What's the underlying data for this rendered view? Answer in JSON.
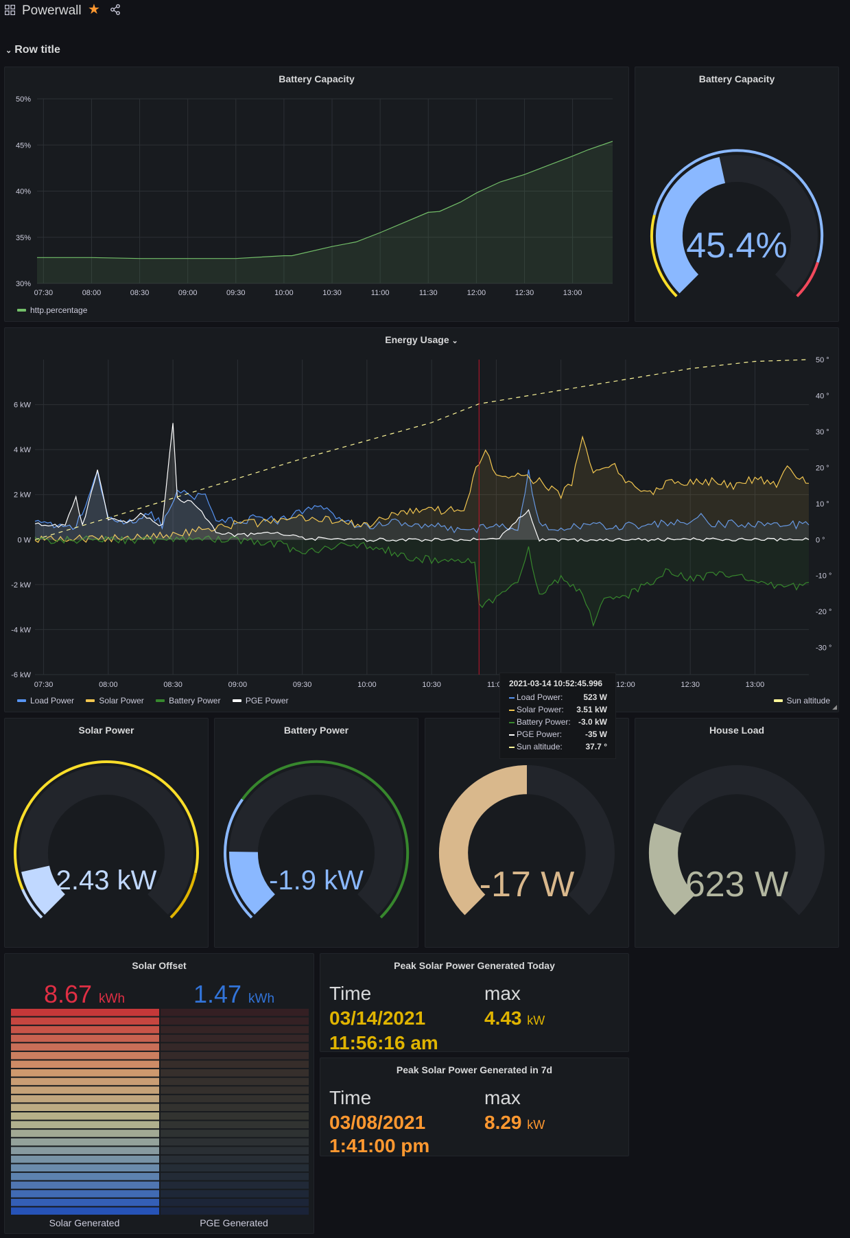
{
  "header": {
    "title": "Powerwall",
    "row_title": "Row title"
  },
  "battery_chart": {
    "title": "Battery Capacity",
    "chart_data": {
      "type": "area",
      "title": "Battery Capacity",
      "x_ticks": [
        "07:30",
        "08:00",
        "08:30",
        "09:00",
        "09:30",
        "10:00",
        "10:30",
        "11:00",
        "11:30",
        "12:00",
        "12:30",
        "13:00"
      ],
      "y_ticks": [
        "30%",
        "35%",
        "40%",
        "45%",
        "50%"
      ],
      "ylim": [
        30,
        50
      ],
      "xlim": [
        "07:26",
        "13:25"
      ],
      "series": [
        {
          "name": "http.percentage",
          "color": "#73bf69",
          "points": [
            [
              "07:26",
              32.8
            ],
            [
              "08:00",
              32.8
            ],
            [
              "08:30",
              32.7
            ],
            [
              "09:00",
              32.7
            ],
            [
              "09:30",
              32.7
            ],
            [
              "10:00",
              33.0
            ],
            [
              "10:05",
              33.0
            ],
            [
              "10:30",
              34.0
            ],
            [
              "10:45",
              34.5
            ],
            [
              "11:00",
              35.5
            ],
            [
              "11:15",
              36.6
            ],
            [
              "11:30",
              37.7
            ],
            [
              "11:37",
              37.8
            ],
            [
              "11:50",
              38.8
            ],
            [
              "12:00",
              39.8
            ],
            [
              "12:15",
              41.0
            ],
            [
              "12:30",
              41.8
            ],
            [
              "12:45",
              42.8
            ],
            [
              "13:00",
              43.8
            ],
            [
              "13:10",
              44.5
            ],
            [
              "13:25",
              45.4
            ]
          ]
        }
      ]
    }
  },
  "battery_gauge": {
    "title": "Battery Capacity",
    "value_text": "45.4%",
    "value": 45.4,
    "min": 0,
    "max": 100,
    "color": "#8ab8ff"
  },
  "energy_chart": {
    "title": "Energy Usage",
    "chart_data": {
      "type": "line",
      "title": "Energy Usage",
      "x_ticks": [
        "07:30",
        "08:00",
        "08:30",
        "09:00",
        "09:30",
        "10:00",
        "10:30",
        "11:00",
        "11:30",
        "12:00",
        "12:30",
        "13:00"
      ],
      "y_ticks_left": [
        "-6 kW",
        "-4 kW",
        "-2 kW",
        "0 W",
        "2 kW",
        "4 kW",
        "6 kW"
      ],
      "y_ticks_right": [
        "-30 °",
        "-20 °",
        "-10 °",
        "0 °",
        "10 °",
        "20 °",
        "30 °",
        "40 °",
        "50 °"
      ],
      "ylim_kw": [
        -6,
        8
      ],
      "ylim_deg": [
        -37.5,
        50
      ],
      "xlim": [
        "07:26",
        "13:25"
      ],
      "series": [
        {
          "name": "Load Power",
          "color": "#5794f2",
          "axis": "left",
          "points": [
            [
              "07:26",
              0.7
            ],
            [
              "07:45",
              0.6
            ],
            [
              "07:55",
              2.9
            ],
            [
              "08:00",
              0.9
            ],
            [
              "08:10",
              0.8
            ],
            [
              "08:20",
              1.2
            ],
            [
              "08:25",
              0.6
            ],
            [
              "08:32",
              2.2
            ],
            [
              "08:40",
              1.8
            ],
            [
              "08:45",
              2.1
            ],
            [
              "08:50",
              0.9
            ],
            [
              "09:00",
              0.8
            ],
            [
              "09:10",
              1.0
            ],
            [
              "09:20",
              0.8
            ],
            [
              "09:30",
              1.3
            ],
            [
              "09:40",
              1.4
            ],
            [
              "09:50",
              0.7
            ],
            [
              "10:00",
              0.6
            ],
            [
              "10:10",
              0.8
            ],
            [
              "10:30",
              0.6
            ],
            [
              "10:45",
              0.4
            ],
            [
              "11:00",
              0.6
            ],
            [
              "11:10",
              0.5
            ],
            [
              "11:15",
              3.0
            ],
            [
              "11:20",
              0.6
            ],
            [
              "11:30",
              0.5
            ],
            [
              "11:45",
              0.6
            ],
            [
              "12:00",
              0.6
            ],
            [
              "12:30",
              0.8
            ],
            [
              "12:35",
              1.3
            ],
            [
              "12:40",
              0.7
            ],
            [
              "13:00",
              0.7
            ],
            [
              "13:25",
              0.65
            ]
          ]
        },
        {
          "name": "Solar Power",
          "color": "#f2c650",
          "axis": "left",
          "points": [
            [
              "07:26",
              0.0
            ],
            [
              "08:00",
              0.05
            ],
            [
              "08:30",
              0.2
            ],
            [
              "08:45",
              0.5
            ],
            [
              "09:00",
              0.7
            ],
            [
              "09:20",
              0.8
            ],
            [
              "09:30",
              1.0
            ],
            [
              "09:50",
              0.8
            ],
            [
              "10:00",
              0.6
            ],
            [
              "10:10",
              1.0
            ],
            [
              "10:20",
              1.2
            ],
            [
              "10:30",
              1.3
            ],
            [
              "10:45",
              1.3
            ],
            [
              "10:52",
              3.5
            ],
            [
              "10:55",
              3.9
            ],
            [
              "11:00",
              3.0
            ],
            [
              "11:10",
              2.8
            ],
            [
              "11:20",
              2.6
            ],
            [
              "11:30",
              2.0
            ],
            [
              "11:35",
              2.5
            ],
            [
              "11:40",
              4.4
            ],
            [
              "11:45",
              3.0
            ],
            [
              "11:55",
              3.3
            ],
            [
              "12:00",
              2.6
            ],
            [
              "12:10",
              2.0
            ],
            [
              "12:20",
              2.6
            ],
            [
              "12:30",
              2.5
            ],
            [
              "12:40",
              2.6
            ],
            [
              "12:50",
              2.4
            ],
            [
              "13:00",
              2.7
            ],
            [
              "13:10",
              2.5
            ],
            [
              "13:15",
              3.2
            ],
            [
              "13:25",
              2.5
            ]
          ]
        },
        {
          "name": "Battery Power",
          "color": "#37872d",
          "axis": "left",
          "points": [
            [
              "07:26",
              0.0
            ],
            [
              "09:00",
              0.0
            ],
            [
              "09:20",
              -0.2
            ],
            [
              "09:30",
              -0.6
            ],
            [
              "09:45",
              -0.3
            ],
            [
              "10:00",
              -0.3
            ],
            [
              "10:10",
              -0.5
            ],
            [
              "10:20",
              -0.8
            ],
            [
              "10:30",
              -0.9
            ],
            [
              "10:50",
              -1.0
            ],
            [
              "10:52",
              -3.0
            ],
            [
              "10:55",
              -2.8
            ],
            [
              "11:00",
              -2.7
            ],
            [
              "11:10",
              -1.9
            ],
            [
              "11:15",
              -0.4
            ],
            [
              "11:20",
              -2.5
            ],
            [
              "11:30",
              -1.7
            ],
            [
              "11:40",
              -2.3
            ],
            [
              "11:45",
              -3.7
            ],
            [
              "11:50",
              -2.6
            ],
            [
              "12:00",
              -2.5
            ],
            [
              "12:10",
              -2.0
            ],
            [
              "12:20",
              -1.3
            ],
            [
              "12:30",
              -1.8
            ],
            [
              "12:45",
              -1.5
            ],
            [
              "13:00",
              -1.7
            ],
            [
              "13:15",
              -2.2
            ],
            [
              "13:25",
              -1.9
            ]
          ]
        },
        {
          "name": "PGE Power",
          "color": "#ffffff",
          "axis": "left",
          "points": [
            [
              "07:26",
              0.7
            ],
            [
              "07:40",
              0.6
            ],
            [
              "07:45",
              1.9
            ],
            [
              "07:48",
              0.6
            ],
            [
              "07:55",
              3.1
            ],
            [
              "08:00",
              0.9
            ],
            [
              "08:10",
              0.8
            ],
            [
              "08:15",
              1.2
            ],
            [
              "08:25",
              0.6
            ],
            [
              "08:30",
              5.2
            ],
            [
              "08:32",
              1.8
            ],
            [
              "08:40",
              1.6
            ],
            [
              "08:45",
              1.0
            ],
            [
              "08:50",
              0.3
            ],
            [
              "09:00",
              0.2
            ],
            [
              "09:20",
              0.3
            ],
            [
              "09:30",
              0.05
            ],
            [
              "10:00",
              0.0
            ],
            [
              "10:30",
              0.0
            ],
            [
              "11:00",
              0.0
            ],
            [
              "11:15",
              1.3
            ],
            [
              "11:20",
              0.0
            ],
            [
              "12:00",
              0.0
            ],
            [
              "12:30",
              0.0
            ],
            [
              "13:00",
              0.0
            ],
            [
              "13:25",
              0.0
            ]
          ]
        },
        {
          "name": "Sun altitude",
          "color": "#fff899",
          "axis": "right",
          "dashed": true,
          "points": [
            [
              "07:26",
              0.0
            ],
            [
              "08:00",
              6.0
            ],
            [
              "08:30",
              11.5
            ],
            [
              "09:00",
              17.0
            ],
            [
              "09:30",
              22.5
            ],
            [
              "10:00",
              27.5
            ],
            [
              "10:30",
              32.5
            ],
            [
              "10:52",
              37.7
            ],
            [
              "11:30",
              41.5
            ],
            [
              "12:00",
              44.5
            ],
            [
              "12:30",
              47.5
            ],
            [
              "13:00",
              49.5
            ],
            [
              "13:25",
              50.0
            ]
          ]
        }
      ],
      "hover_time": "10:52"
    },
    "tooltip": {
      "timestamp": "2021-03-14 10:52:45.996",
      "rows": [
        {
          "label": "Load Power:",
          "value": "523 W",
          "color": "#5794f2"
        },
        {
          "label": "Solar Power:",
          "value": "3.51 kW",
          "color": "#f2c650"
        },
        {
          "label": "Battery Power:",
          "value": "-3.0 kW",
          "color": "#37872d"
        },
        {
          "label": "PGE Power:",
          "value": "-35 W",
          "color": "#ffffff"
        },
        {
          "label": "Sun altitude:",
          "value": "37.7 °",
          "color": "#fff899"
        }
      ]
    }
  },
  "gauges": [
    {
      "title": "Solar Power",
      "value_text": "2.43 kW",
      "fraction": 0.12,
      "color": "#c0d8ff",
      "bg": "#22252b"
    },
    {
      "title": "Battery Power",
      "value_text": "-1.9 kW",
      "fraction": 0.17,
      "color": "#8ab8ff",
      "bg": "#22252b"
    },
    {
      "title": "",
      "value_text": "-17 W",
      "fraction": 0.5,
      "color": "#d9b88c",
      "bg": "#22252b"
    },
    {
      "title": "House Load",
      "value_text": "623 W",
      "fraction": 0.24,
      "color": "#b3b7a0",
      "bg": "#22252b"
    }
  ],
  "solar_offset": {
    "title": "Solar Offset",
    "solar_value": "8.67",
    "solar_unit": "kWh",
    "solar_color": "#e02f44",
    "pge_value": "1.47",
    "pge_unit": "kWh",
    "pge_color": "#3274d9",
    "solar_label": "Solar Generated",
    "pge_label": "PGE Generated",
    "solar_fraction": 1.0,
    "pge_fraction": 0.04
  },
  "peak_today": {
    "title": "Peak Solar Power Generated Today",
    "time_header": "Time",
    "max_header": "max",
    "date": "03/14/2021",
    "time": "11:56:16 am",
    "max": "4.43",
    "unit": "kW",
    "color": "#e0b400"
  },
  "peak_7d": {
    "title": "Peak Solar Power Generated in 7d",
    "time_header": "Time",
    "max_header": "max",
    "date": "03/08/2021",
    "time": "1:41:00 pm",
    "max": "8.29",
    "unit": "kW",
    "color": "#ff9830"
  }
}
